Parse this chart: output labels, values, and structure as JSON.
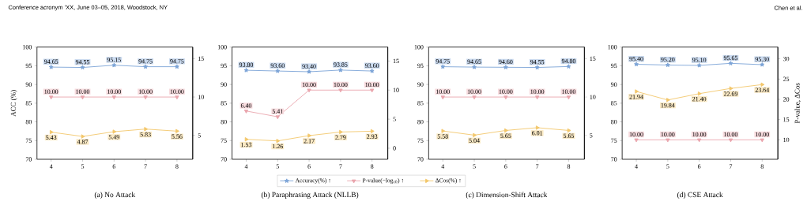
{
  "chart_data": [
    {
      "type": "line",
      "title": "(a) No Attack",
      "annotations": [
        "Conference acronym ’XX, June 03–05, 2018, Woodstock, NY"
      ],
      "ylabel": "ACC (%)",
      "x": [
        4,
        5,
        6,
        7,
        8
      ],
      "xlim": [
        3.55,
        8.5
      ],
      "xticks": [
        4,
        5,
        6,
        7,
        8
      ],
      "ylim": [
        70,
        100
      ],
      "yticks": [
        70,
        75,
        80,
        85,
        90,
        95,
        100
      ],
      "y2lim": [
        1.9,
        16.5
      ],
      "y2ticks": [
        5,
        10,
        15
      ],
      "series": [
        {
          "color": "#7ba3d6",
          "marker": "star",
          "values": [
            94.65,
            94.55,
            95.15,
            94.75,
            94.75
          ],
          "value_labels": [
            "94.65",
            "94.55",
            "95.15",
            "94.75",
            "94.75"
          ]
        },
        {
          "color": "#eaa5ad",
          "marker": "triangle",
          "axis": "y2",
          "values": [
            10.0,
            10.0,
            10.0,
            10.0,
            10.0
          ],
          "value_labels": [
            "10.00",
            "10.00",
            "10.00",
            "10.00",
            "10.00"
          ]
        },
        {
          "color": "#f3c76b",
          "marker": "triangle",
          "axis": "y2",
          "values": [
            5.43,
            4.87,
            5.49,
            5.83,
            5.56
          ],
          "value_labels": [
            "5.43",
            "4.87",
            "5.49",
            "5.83",
            "5.56"
          ]
        }
      ]
    },
    {
      "type": "line",
      "title": "(b) Paraphrasing Attack (NLLB)",
      "legend": "bottom",
      "x": [
        4,
        5,
        6,
        7,
        8
      ],
      "xlim": [
        3.55,
        8.5
      ],
      "xticks": [
        4,
        5,
        6,
        7,
        8
      ],
      "ylim": [
        70,
        100
      ],
      "yticks": [
        70,
        75,
        80,
        85,
        90,
        95,
        100
      ],
      "y2lim": [
        -1.9,
        17.4
      ],
      "y2ticks": [
        0,
        5,
        10,
        15
      ],
      "series": [
        {
          "name": "Accuracy(%) ↑",
          "color": "#7ba3d6",
          "marker": "star",
          "values": [
            93.8,
            93.6,
            93.4,
            93.85,
            93.6
          ],
          "value_labels": [
            "93.80",
            "93.60",
            "93.40",
            "93.85",
            "93.60"
          ]
        },
        {
          "name": "P-value(−log$_{10}$) ↑",
          "color": "#eaa5ad",
          "marker": "triangle",
          "axis": "y2",
          "values": [
            6.4,
            5.41,
            10.0,
            10.0,
            10.0
          ],
          "value_labels": [
            "6.40",
            "5.41",
            "10.00",
            "10.00",
            "10.00"
          ]
        },
        {
          "name": "ΔCos(%) ↑",
          "color": "#f3c76b",
          "marker": "triangle",
          "axis": "y2",
          "values": [
            1.53,
            1.26,
            2.17,
            2.79,
            2.93
          ],
          "value_labels": [
            "1.53",
            "1.26",
            "2.17",
            "2.79",
            "2.93"
          ]
        }
      ]
    },
    {
      "type": "line",
      "title": "(c) Dimension-Shift Attack",
      "x": [
        4,
        5,
        6,
        7,
        8
      ],
      "xlim": [
        3.55,
        8.5
      ],
      "xticks": [
        4,
        5,
        6,
        7,
        8
      ],
      "ylim": [
        70,
        100
      ],
      "yticks": [
        70,
        75,
        80,
        85,
        90,
        95,
        100
      ],
      "y2lim": [
        1.9,
        16.5
      ],
      "y2ticks": [
        5,
        10,
        15
      ],
      "series": [
        {
          "color": "#7ba3d6",
          "marker": "star",
          "values": [
            94.75,
            94.65,
            94.6,
            94.55,
            94.8
          ],
          "value_labels": [
            "94.75",
            "94.65",
            "94.60",
            "94.55",
            "94.80"
          ]
        },
        {
          "color": "#eaa5ad",
          "marker": "triangle",
          "axis": "y2",
          "values": [
            10.0,
            10.0,
            10.0,
            10.0,
            10.0
          ],
          "value_labels": [
            "10.00",
            "10.00",
            "10.00",
            "10.00",
            "10.00"
          ]
        },
        {
          "color": "#f3c76b",
          "marker": "triangle",
          "axis": "y2",
          "values": [
            5.58,
            5.04,
            5.65,
            6.01,
            5.65
          ],
          "value_labels": [
            "5.58",
            "5.04",
            "5.65",
            "6.01",
            "5.65"
          ]
        }
      ]
    },
    {
      "type": "line",
      "title": "(d) CSE Attack",
      "annotations": [
        "Chen et al."
      ],
      "y2label": "P-value, ΔCos",
      "x": [
        4,
        5,
        6,
        7,
        8
      ],
      "xlim": [
        3.55,
        8.5
      ],
      "xticks": [
        4,
        5,
        6,
        7,
        8
      ],
      "ylim": [
        70,
        100
      ],
      "yticks": [
        70,
        75,
        80,
        85,
        90,
        95,
        100
      ],
      "y2lim": [
        5.2,
        32.9
      ],
      "y2ticks": [
        10,
        15,
        20,
        25,
        30
      ],
      "series": [
        {
          "color": "#7ba3d6",
          "marker": "star",
          "values": [
            95.4,
            95.2,
            95.1,
            95.65,
            95.3
          ],
          "value_labels": [
            "95.40",
            "95.20",
            "95.10",
            "95.65",
            "95.30"
          ]
        },
        {
          "color": "#eaa5ad",
          "marker": "triangle",
          "axis": "y2",
          "values": [
            10.0,
            10.0,
            10.0,
            10.0,
            10.0
          ],
          "value_labels": [
            "10.00",
            "10.00",
            "10.00",
            "10.00",
            "10.00"
          ]
        },
        {
          "color": "#f3c76b",
          "marker": "triangle",
          "axis": "y2",
          "values": [
            21.94,
            19.84,
            21.4,
            22.69,
            23.64
          ],
          "value_labels": [
            "21.94",
            "19.84",
            "21.40",
            "22.69",
            "23.64"
          ]
        }
      ]
    }
  ]
}
